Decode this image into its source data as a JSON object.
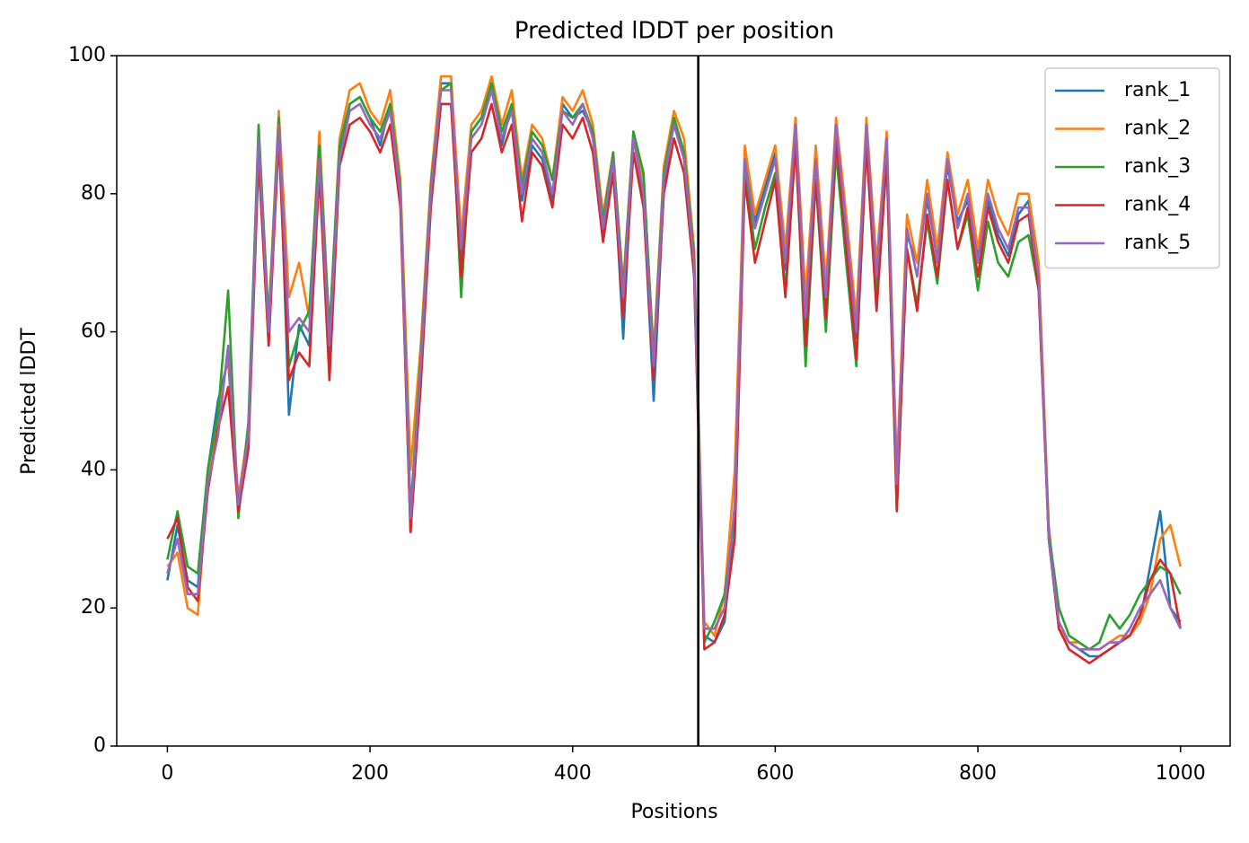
{
  "chart_data": {
    "type": "line",
    "title": "Predicted lDDT per position",
    "xlabel": "Positions",
    "ylabel": "Predicted lDDT",
    "x": [
      0,
      10,
      20,
      30,
      40,
      50,
      60,
      70,
      80,
      90,
      100,
      110,
      120,
      130,
      140,
      150,
      160,
      170,
      180,
      190,
      200,
      210,
      220,
      230,
      240,
      250,
      260,
      270,
      280,
      290,
      300,
      310,
      320,
      330,
      340,
      350,
      360,
      370,
      380,
      390,
      400,
      410,
      420,
      430,
      440,
      450,
      460,
      470,
      480,
      490,
      500,
      510,
      520,
      530,
      540,
      550,
      560,
      570,
      580,
      590,
      600,
      610,
      620,
      630,
      640,
      650,
      660,
      670,
      680,
      690,
      700,
      710,
      720,
      730,
      740,
      750,
      760,
      770,
      780,
      790,
      800,
      810,
      820,
      830,
      840,
      850,
      860,
      870,
      880,
      890,
      900,
      910,
      920,
      930,
      940,
      950,
      960,
      970,
      980,
      990,
      1000
    ],
    "series": [
      {
        "name": "rank_1",
        "color": "#1f77b4",
        "values": [
          24,
          32,
          24,
          23,
          40,
          50,
          56,
          34,
          44,
          87,
          58,
          91,
          48,
          61,
          58,
          86,
          56,
          86,
          93,
          94,
          91,
          87,
          93,
          79,
          31,
          54,
          81,
          96,
          96,
          70,
          89,
          91,
          96,
          87,
          93,
          79,
          87,
          85,
          79,
          93,
          91,
          92,
          89,
          74,
          86,
          59,
          89,
          79,
          50,
          81,
          91,
          86,
          68,
          16,
          15,
          18,
          34,
          86,
          76,
          81,
          86,
          69,
          91,
          60,
          86,
          64,
          89,
          74,
          59,
          89,
          67,
          87,
          37,
          74,
          70,
          79,
          71,
          84,
          76,
          79,
          71,
          79,
          74,
          71,
          77,
          79,
          67,
          30,
          17,
          15,
          14,
          13,
          13,
          14,
          15,
          16,
          18,
          26,
          34,
          20,
          18
        ]
      },
      {
        "name": "rank_2",
        "color": "#ff7f0e",
        "values": [
          26,
          28,
          20,
          19,
          39,
          47,
          57,
          36,
          46,
          89,
          62,
          92,
          65,
          70,
          62,
          89,
          60,
          88,
          95,
          96,
          92,
          90,
          95,
          82,
          40,
          58,
          82,
          97,
          97,
          74,
          90,
          92,
          97,
          90,
          95,
          82,
          90,
          88,
          82,
          94,
          92,
          95,
          90,
          77,
          86,
          67,
          89,
          82,
          57,
          84,
          92,
          88,
          72,
          18,
          16,
          22,
          40,
          87,
          77,
          82,
          87,
          72,
          91,
          65,
          87,
          67,
          91,
          77,
          62,
          91,
          70,
          89,
          40,
          77,
          70,
          82,
          72,
          86,
          77,
          82,
          72,
          82,
          77,
          74,
          80,
          80,
          70,
          32,
          17,
          15,
          15,
          14,
          14,
          15,
          16,
          16,
          18,
          22,
          30,
          32,
          26
        ]
      },
      {
        "name": "rank_3",
        "color": "#2ca02c",
        "values": [
          27,
          34,
          26,
          25,
          40,
          48,
          66,
          33,
          47,
          90,
          61,
          91,
          55,
          60,
          63,
          87,
          60,
          87,
          93,
          94,
          91,
          89,
          93,
          81,
          34,
          56,
          81,
          95,
          96,
          65,
          89,
          91,
          96,
          89,
          93,
          81,
          89,
          87,
          82,
          92,
          91,
          93,
          89,
          76,
          86,
          66,
          89,
          83,
          56,
          83,
          91,
          86,
          71,
          15,
          18,
          22,
          33,
          84,
          72,
          78,
          83,
          66,
          88,
          55,
          82,
          60,
          86,
          70,
          55,
          87,
          65,
          85,
          34,
          72,
          64,
          76,
          67,
          82,
          72,
          77,
          66,
          76,
          70,
          68,
          73,
          74,
          66,
          31,
          20,
          16,
          15,
          14,
          15,
          19,
          17,
          19,
          22,
          24,
          26,
          25,
          22
        ]
      },
      {
        "name": "rank_4",
        "color": "#d62728",
        "values": [
          30,
          33,
          23,
          21,
          37,
          46,
          52,
          34,
          43,
          85,
          58,
          88,
          53,
          57,
          55,
          83,
          53,
          84,
          90,
          91,
          89,
          86,
          90,
          78,
          31,
          52,
          78,
          93,
          93,
          68,
          86,
          88,
          93,
          86,
          90,
          76,
          86,
          84,
          78,
          90,
          88,
          91,
          86,
          73,
          83,
          62,
          86,
          78,
          53,
          80,
          88,
          83,
          68,
          14,
          15,
          19,
          30,
          82,
          70,
          76,
          82,
          65,
          87,
          58,
          82,
          62,
          88,
          72,
          56,
          87,
          63,
          85,
          34,
          72,
          63,
          77,
          68,
          82,
          72,
          78,
          68,
          78,
          73,
          70,
          76,
          77,
          66,
          30,
          17,
          14,
          13,
          12,
          13,
          14,
          15,
          16,
          19,
          24,
          27,
          25,
          17
        ]
      },
      {
        "name": "rank_5",
        "color": "#9467bd",
        "values": [
          25,
          30,
          22,
          22,
          38,
          45,
          58,
          35,
          45,
          88,
          60,
          90,
          60,
          62,
          60,
          85,
          58,
          85,
          92,
          93,
          90,
          88,
          92,
          80,
          33,
          55,
          80,
          95,
          95,
          72,
          88,
          90,
          95,
          88,
          92,
          80,
          88,
          86,
          80,
          92,
          90,
          93,
          88,
          75,
          85,
          65,
          88,
          80,
          55,
          82,
          90,
          85,
          70,
          17,
          17,
          20,
          35,
          85,
          75,
          80,
          85,
          70,
          90,
          62,
          85,
          65,
          90,
          75,
          60,
          90,
          68,
          88,
          38,
          75,
          68,
          80,
          70,
          85,
          75,
          80,
          70,
          80,
          75,
          72,
          78,
          78,
          68,
          30,
          18,
          15,
          14,
          14,
          14,
          15,
          15,
          17,
          20,
          22,
          24,
          20,
          17
        ]
      }
    ],
    "vlines": [
      524
    ],
    "vline_color": "#000000",
    "xlim": [
      -50,
      1049
    ],
    "ylim": [
      0,
      100
    ],
    "xticks": [
      0,
      200,
      400,
      600,
      800,
      1000
    ],
    "yticks": [
      0,
      20,
      40,
      60,
      80,
      100
    ],
    "legend": "upper right"
  }
}
